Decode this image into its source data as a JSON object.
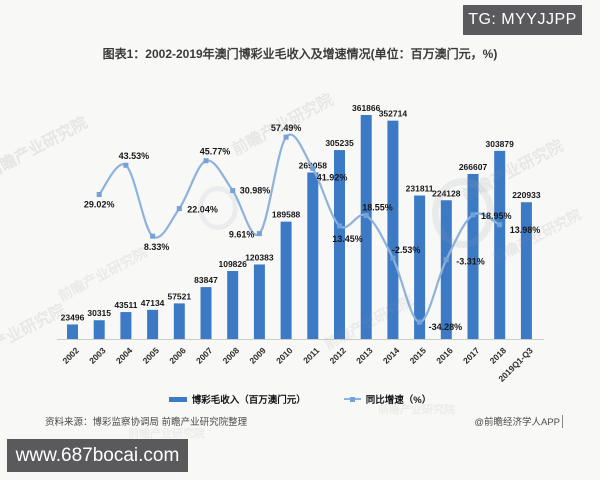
{
  "badges": {
    "telegram": "TG: MYYJJPP",
    "website": "www.687bocai.com"
  },
  "source": "资料来源：博彩监察协调局 前瞻产业研究院整理",
  "credit": "@前瞻经济学人APP",
  "watermark_text": "前瞻产业研究院",
  "colors": {
    "bar": "#3d7ac6",
    "line": "#8fb2dc",
    "marker": "#74a2d6",
    "badge_bg": "#5a5a5c",
    "background": "#f8f8f6",
    "value_label": "#17171b",
    "axis_label": "#2d2d2d",
    "title_text": "#3a3a3a",
    "source_text": "#4a4a4a",
    "axis_line": "#cccccc"
  },
  "chart_data": {
    "type": "bar",
    "combo": "bar + smoothed line with value labels",
    "title": "图表1：2002-2019年澳门博彩业毛收入及增速情况(单位：百万澳门元，%)",
    "categories": [
      "2002",
      "2003",
      "2004",
      "2005",
      "2006",
      "2007",
      "2008",
      "2009",
      "2010",
      "2011",
      "2012",
      "2013",
      "2014",
      "2015",
      "2016",
      "2017",
      "2018",
      "2019Q1-Q3"
    ],
    "series": [
      {
        "name": "博彩毛收入（百万澳门元）",
        "type": "bar",
        "values": [
          23496,
          30315,
          43511,
          47134,
          57521,
          83847,
          109826,
          120383,
          189588,
          269058,
          305235,
          361866,
          352714,
          231811,
          224128,
          266607,
          303879,
          220933
        ]
      },
      {
        "name": "同比增速（%）",
        "type": "line",
        "values": [
          null,
          29.02,
          43.53,
          8.33,
          22.04,
          45.77,
          30.98,
          9.61,
          57.49,
          41.92,
          13.45,
          18.55,
          -2.53,
          -34.28,
          -3.31,
          18.95,
          13.98,
          null
        ]
      }
    ],
    "legend_position": "bottom",
    "grid": false,
    "value_labels": true,
    "xlabel": "",
    "ylabel": ""
  }
}
